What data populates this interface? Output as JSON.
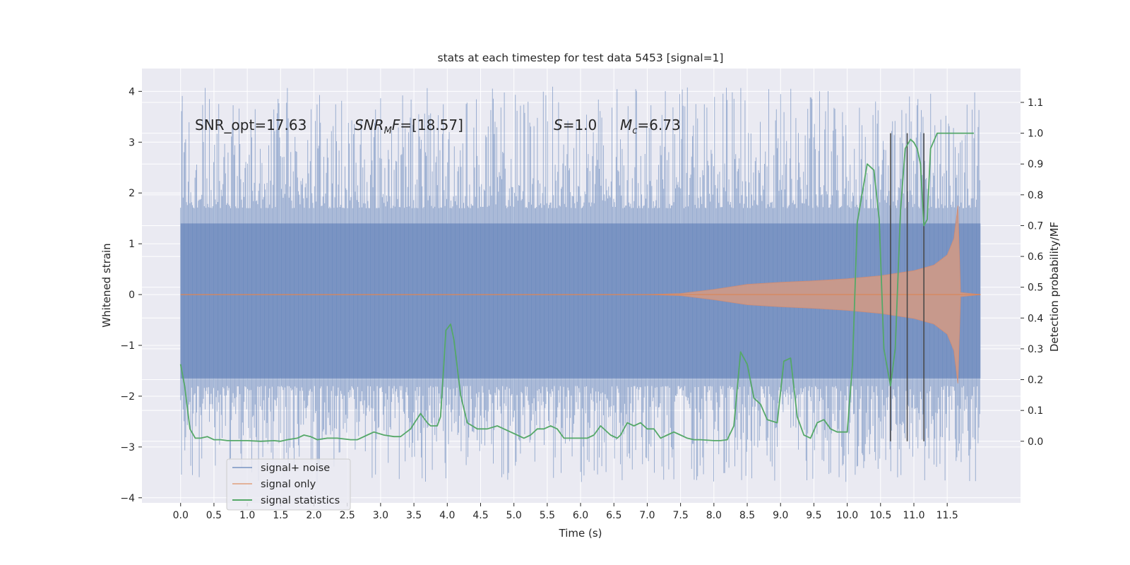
{
  "chart_data": {
    "type": "line",
    "title": "stats at each timestep for test data 5453 [signal=1]",
    "xlabel": "Time (s)",
    "ylabel": "Whitened strain",
    "ylabel_right": "Detection probability/MF",
    "xlim": [
      -0.58,
      12.6
    ],
    "ylim": [
      -4.1,
      4.45
    ],
    "ylim_right": [
      -0.2,
      1.21
    ],
    "x_ticks": [
      0.0,
      0.5,
      1.0,
      1.5,
      2.0,
      2.5,
      3.0,
      3.5,
      4.0,
      4.5,
      5.0,
      5.5,
      6.0,
      6.5,
      7.0,
      7.5,
      8.0,
      8.5,
      9.0,
      9.5,
      10.0,
      10.5,
      11.0,
      11.5
    ],
    "x_tick_labels": [
      "0.0",
      "0.5",
      "1.0",
      "1.5",
      "2.0",
      "2.5",
      "3.0",
      "3.5",
      "4.0",
      "4.5",
      "5.0",
      "5.5",
      "6.0",
      "6.5",
      "7.0",
      "7.5",
      "8.0",
      "8.5",
      "9.0",
      "9.5",
      "10.0",
      "10.5",
      "11.0",
      "11.5"
    ],
    "y_ticks": [
      -4,
      -3,
      -2,
      -1,
      0,
      1,
      2,
      3,
      4
    ],
    "y_tick_labels": [
      "−4",
      "−3",
      "−2",
      "−1",
      "0",
      "1",
      "2",
      "3",
      "4"
    ],
    "y_ticks_right": [
      0.0,
      0.1,
      0.2,
      0.3,
      0.4,
      0.5,
      0.6,
      0.7,
      0.8,
      0.9,
      1.0,
      1.1
    ],
    "y_tick_labels_right": [
      "0.0",
      "0.1",
      "0.2",
      "0.3",
      "0.4",
      "0.5",
      "0.6",
      "0.7",
      "0.8",
      "0.9",
      "1.0",
      "1.1"
    ],
    "annotations": {
      "snr_opt": "SNR_opt=17.63",
      "snr_mf_main": "SNR",
      "snr_mf_sub": "M",
      "snr_mf_italic": "F",
      "snr_mf_value": "=[18.57]",
      "s_symbol": "S",
      "s_value": "=1.0",
      "mc_symbol": "M",
      "mc_sub": "c",
      "mc_value": "=6.73"
    },
    "legend": {
      "position": "lower-left",
      "entries": [
        "signal+ noise",
        "signal only",
        "signal statistics"
      ]
    },
    "series": [
      {
        "name": "signal+ noise",
        "kind": "noise-band",
        "axis": "left",
        "x_range": [
          0.0,
          12.0
        ],
        "core_band": [
          -1.65,
          1.4
        ],
        "spike_max": 4.1,
        "spike_min": -3.7
      },
      {
        "name": "signal only",
        "kind": "chirp-envelope",
        "axis": "left",
        "envelope": {
          "x": [
            0.0,
            7.0,
            7.5,
            8.0,
            8.5,
            9.0,
            9.5,
            10.0,
            10.5,
            11.0,
            11.3,
            11.5,
            11.6,
            11.66,
            11.7,
            12.0
          ],
          "y": [
            0.0,
            0.0,
            0.02,
            0.1,
            0.2,
            0.24,
            0.27,
            0.31,
            0.37,
            0.47,
            0.58,
            0.78,
            1.1,
            1.75,
            0.04,
            0.0
          ]
        }
      },
      {
        "name": "signal statistics",
        "kind": "line",
        "axis": "right",
        "x": [
          0.0,
          0.06,
          0.14,
          0.22,
          0.3,
          0.4,
          0.5,
          0.6,
          0.7,
          0.8,
          1.0,
          1.2,
          1.4,
          1.5,
          1.6,
          1.75,
          1.85,
          1.95,
          2.05,
          2.2,
          2.35,
          2.55,
          2.65,
          2.8,
          2.9,
          3.05,
          3.2,
          3.3,
          3.45,
          3.6,
          3.7,
          3.75,
          3.85,
          3.9,
          3.98,
          4.05,
          4.1,
          4.2,
          4.3,
          4.45,
          4.6,
          4.75,
          4.85,
          4.95,
          5.05,
          5.15,
          5.25,
          5.35,
          5.45,
          5.55,
          5.65,
          5.75,
          5.9,
          6.0,
          6.1,
          6.2,
          6.3,
          6.45,
          6.55,
          6.6,
          6.7,
          6.8,
          6.9,
          7.0,
          7.1,
          7.2,
          7.3,
          7.4,
          7.5,
          7.6,
          7.7,
          7.8,
          8.0,
          8.1,
          8.2,
          8.3,
          8.4,
          8.5,
          8.6,
          8.7,
          8.8,
          8.95,
          9.05,
          9.15,
          9.25,
          9.35,
          9.45,
          9.55,
          9.65,
          9.75,
          9.85,
          10.0,
          10.08,
          10.15,
          10.3,
          10.4,
          10.48,
          10.55,
          10.65,
          10.72,
          10.8,
          10.87,
          10.95,
          11.0,
          11.05,
          11.1,
          11.15,
          11.2,
          11.25,
          11.35,
          11.5,
          11.9
        ],
        "values": [
          0.25,
          0.18,
          0.04,
          0.01,
          0.01,
          0.015,
          0.005,
          0.005,
          0.002,
          0.002,
          0.002,
          0.0,
          0.002,
          0.0,
          0.005,
          0.01,
          0.02,
          0.015,
          0.005,
          0.01,
          0.01,
          0.005,
          0.005,
          0.02,
          0.03,
          0.02,
          0.015,
          0.015,
          0.04,
          0.09,
          0.06,
          0.05,
          0.05,
          0.08,
          0.36,
          0.38,
          0.33,
          0.15,
          0.06,
          0.04,
          0.04,
          0.05,
          0.04,
          0.03,
          0.02,
          0.01,
          0.02,
          0.04,
          0.04,
          0.05,
          0.04,
          0.01,
          0.01,
          0.01,
          0.01,
          0.02,
          0.05,
          0.02,
          0.01,
          0.02,
          0.06,
          0.05,
          0.06,
          0.04,
          0.04,
          0.01,
          0.02,
          0.03,
          0.02,
          0.01,
          0.005,
          0.005,
          0.002,
          0.002,
          0.005,
          0.05,
          0.29,
          0.25,
          0.14,
          0.12,
          0.07,
          0.06,
          0.26,
          0.27,
          0.08,
          0.02,
          0.01,
          0.06,
          0.07,
          0.04,
          0.03,
          0.03,
          0.25,
          0.71,
          0.9,
          0.88,
          0.72,
          0.3,
          0.18,
          0.3,
          0.75,
          0.95,
          0.98,
          0.97,
          0.95,
          0.9,
          0.7,
          0.72,
          0.95,
          1.0,
          1.0,
          1.0
        ]
      }
    ],
    "threshold_markers": {
      "x": [
        10.65,
        10.9,
        11.15
      ],
      "y_top": 1.0,
      "y_bottom": 0.0
    }
  }
}
